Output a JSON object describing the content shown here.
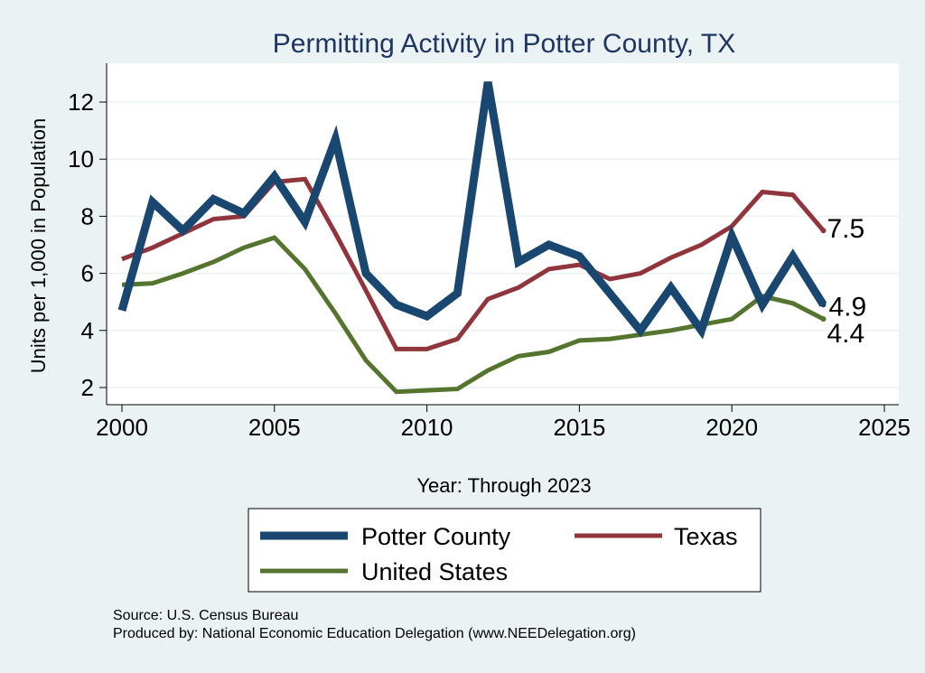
{
  "chart_data": {
    "type": "line",
    "title": "Permitting Activity in Potter County, TX",
    "xlabel": "Year: Through 2023",
    "ylabel": "Units per 1,000 in Population",
    "xlim": [
      2000,
      2025
    ],
    "ylim": [
      1.5,
      13.5
    ],
    "xticks": [
      2000,
      2005,
      2010,
      2015,
      2020,
      2025
    ],
    "yticks": [
      2,
      4,
      6,
      8,
      10,
      12
    ],
    "grid": true,
    "legend_position": "bottom",
    "x": [
      2000,
      2001,
      2002,
      2003,
      2004,
      2005,
      2006,
      2007,
      2008,
      2009,
      2010,
      2011,
      2012,
      2013,
      2014,
      2015,
      2016,
      2017,
      2018,
      2019,
      2020,
      2021,
      2022,
      2023
    ],
    "series": [
      {
        "name": "Potter County",
        "color": "#1a476f",
        "values": [
          4.7,
          8.5,
          7.5,
          8.6,
          8.1,
          9.4,
          7.8,
          10.7,
          6.0,
          4.9,
          4.5,
          5.3,
          12.7,
          6.4,
          7.0,
          6.6,
          5.3,
          4.0,
          5.5,
          4.0,
          7.3,
          4.9,
          6.6,
          4.9
        ],
        "end_label": "4.9"
      },
      {
        "name": "Texas",
        "color": "#90353b",
        "values": [
          6.5,
          6.9,
          7.4,
          7.9,
          8.0,
          9.2,
          9.3,
          7.4,
          5.4,
          3.35,
          3.35,
          3.7,
          5.1,
          5.5,
          6.15,
          6.3,
          5.8,
          6.0,
          6.55,
          7.0,
          7.65,
          8.85,
          8.75,
          7.5
        ],
        "end_label": "7.5"
      },
      {
        "name": "United States",
        "color": "#55752f",
        "values": [
          5.6,
          5.65,
          6.0,
          6.4,
          6.9,
          7.25,
          6.15,
          4.6,
          2.95,
          1.85,
          1.9,
          1.95,
          2.6,
          3.1,
          3.25,
          3.65,
          3.7,
          3.85,
          4.0,
          4.2,
          4.4,
          5.2,
          4.95,
          4.4
        ],
        "end_label": "4.4"
      }
    ]
  },
  "notes": {
    "source": "Source: U.S. Census Bureau",
    "produced_by": "Produced by: National Economic Education Delegation (www.NEEDelegation.org)"
  }
}
